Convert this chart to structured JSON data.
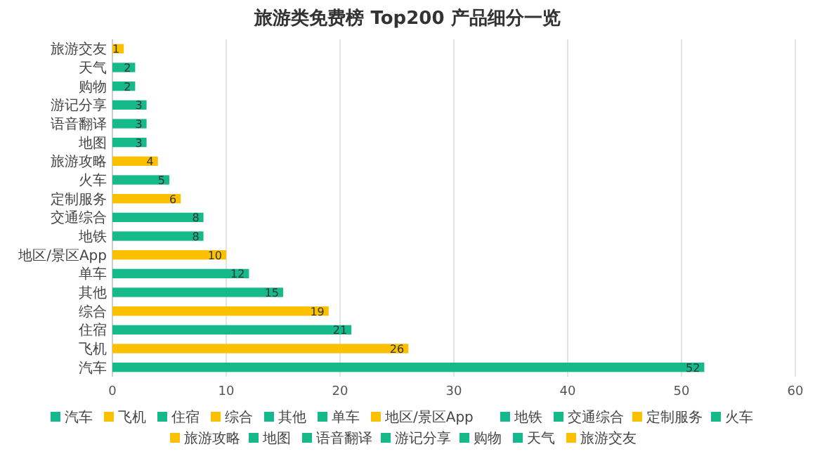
{
  "chart_data": {
    "type": "bar",
    "orientation": "horizontal",
    "stacked": true,
    "title": "旅游类免费榜 Top200 产品细分一览",
    "categories": [
      "旅游交友",
      "天气",
      "购物",
      "游记分享",
      "语音翻译",
      "地图",
      "旅游攻略",
      "火车",
      "定制服务",
      "交通综合",
      "地铁",
      "地区/景区App",
      "单车",
      "其他",
      "综合",
      "住宿",
      "飞机",
      "汽车"
    ],
    "series": [
      {
        "name": "汽车",
        "color": "#15b98b",
        "values": [
          null,
          null,
          null,
          null,
          null,
          null,
          null,
          null,
          null,
          null,
          null,
          null,
          null,
          null,
          null,
          null,
          null,
          52
        ]
      },
      {
        "name": "飞机",
        "color": "#fbc100",
        "values": [
          null,
          null,
          null,
          null,
          null,
          null,
          null,
          null,
          null,
          null,
          null,
          null,
          null,
          null,
          null,
          null,
          26,
          null
        ]
      },
      {
        "name": "住宿",
        "color": "#15b98b",
        "values": [
          null,
          null,
          null,
          null,
          null,
          null,
          null,
          null,
          null,
          null,
          null,
          null,
          null,
          null,
          null,
          21,
          null,
          null
        ]
      },
      {
        "name": "综合",
        "color": "#fbc100",
        "values": [
          null,
          null,
          null,
          null,
          null,
          null,
          null,
          null,
          null,
          null,
          null,
          null,
          null,
          null,
          19,
          null,
          null,
          null
        ]
      },
      {
        "name": "其他",
        "color": "#15b98b",
        "values": [
          null,
          null,
          null,
          null,
          null,
          null,
          null,
          null,
          null,
          null,
          null,
          null,
          null,
          15,
          null,
          null,
          null,
          null
        ]
      },
      {
        "name": "单车",
        "color": "#15b98b",
        "values": [
          null,
          null,
          null,
          null,
          null,
          null,
          null,
          null,
          null,
          null,
          null,
          null,
          12,
          null,
          null,
          null,
          null,
          null
        ]
      },
      {
        "name": "地区/景区App",
        "color": "#fbc100",
        "values": [
          null,
          null,
          null,
          null,
          null,
          null,
          null,
          null,
          null,
          null,
          null,
          10,
          null,
          null,
          null,
          null,
          null,
          null
        ]
      },
      {
        "name": "地铁",
        "color": "#15b98b",
        "values": [
          null,
          null,
          null,
          null,
          null,
          null,
          null,
          null,
          null,
          null,
          8,
          null,
          null,
          null,
          null,
          null,
          null,
          null
        ]
      },
      {
        "name": "交通综合",
        "color": "#15b98b",
        "values": [
          null,
          null,
          null,
          null,
          null,
          null,
          null,
          null,
          null,
          8,
          null,
          null,
          null,
          null,
          null,
          null,
          null,
          null
        ]
      },
      {
        "name": "定制服务",
        "color": "#fbc100",
        "values": [
          null,
          null,
          null,
          null,
          null,
          null,
          null,
          null,
          6,
          null,
          null,
          null,
          null,
          null,
          null,
          null,
          null,
          null
        ]
      },
      {
        "name": "火车",
        "color": "#15b98b",
        "values": [
          null,
          null,
          null,
          null,
          null,
          null,
          null,
          5,
          null,
          null,
          null,
          null,
          null,
          null,
          null,
          null,
          null,
          null
        ]
      },
      {
        "name": "旅游攻略",
        "color": "#fbc100",
        "values": [
          null,
          null,
          null,
          null,
          null,
          null,
          4,
          null,
          null,
          null,
          null,
          null,
          null,
          null,
          null,
          null,
          null,
          null
        ]
      },
      {
        "name": "地图",
        "color": "#15b98b",
        "values": [
          null,
          null,
          null,
          null,
          null,
          3,
          null,
          null,
          null,
          null,
          null,
          null,
          null,
          null,
          null,
          null,
          null,
          null
        ]
      },
      {
        "name": "语音翻译",
        "color": "#15b98b",
        "values": [
          null,
          null,
          null,
          null,
          3,
          null,
          null,
          null,
          null,
          null,
          null,
          null,
          null,
          null,
          null,
          null,
          null,
          null
        ]
      },
      {
        "name": "游记分享",
        "color": "#15b98b",
        "values": [
          null,
          null,
          null,
          3,
          null,
          null,
          null,
          null,
          null,
          null,
          null,
          null,
          null,
          null,
          null,
          null,
          null,
          null
        ]
      },
      {
        "name": "购物",
        "color": "#15b98b",
        "values": [
          null,
          null,
          2,
          null,
          null,
          null,
          null,
          null,
          null,
          null,
          null,
          null,
          null,
          null,
          null,
          null,
          null,
          null
        ]
      },
      {
        "name": "天气",
        "color": "#15b98b",
        "values": [
          null,
          2,
          null,
          null,
          null,
          null,
          null,
          null,
          null,
          null,
          null,
          null,
          null,
          null,
          null,
          null,
          null,
          null
        ]
      },
      {
        "name": "旅游交友",
        "color": "#fbc100",
        "values": [
          1,
          null,
          null,
          null,
          null,
          null,
          null,
          null,
          null,
          null,
          null,
          null,
          null,
          null,
          null,
          null,
          null,
          null
        ]
      }
    ],
    "xlim": [
      0,
      60
    ],
    "xticks": [
      0,
      10,
      20,
      30,
      40,
      50,
      60
    ],
    "grid": "x",
    "data_labels": true,
    "legend": "bottom"
  }
}
